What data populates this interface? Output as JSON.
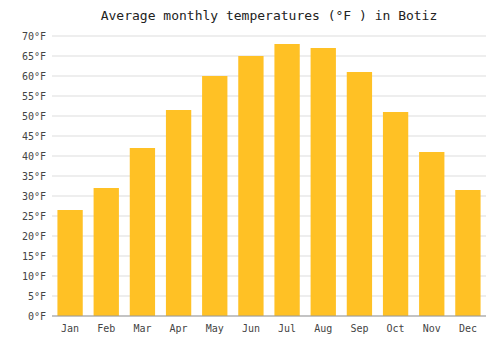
{
  "chart_data": {
    "type": "bar",
    "title": "Average monthly temperatures (°F ) in Botiz",
    "categories": [
      "Jan",
      "Feb",
      "Mar",
      "Apr",
      "May",
      "Jun",
      "Jul",
      "Aug",
      "Sep",
      "Oct",
      "Nov",
      "Dec"
    ],
    "values": [
      26.5,
      32,
      42,
      51.5,
      60,
      65,
      68,
      67,
      61,
      51,
      41,
      31.5
    ],
    "color": "#FFC125",
    "ylim": [
      0,
      70
    ],
    "yticks": [
      {
        "value": 0,
        "label": "0°F"
      },
      {
        "value": 5,
        "label": "5°F"
      },
      {
        "value": 10,
        "label": "10°F"
      },
      {
        "value": 15,
        "label": "15°F"
      },
      {
        "value": 20,
        "label": "20°F"
      },
      {
        "value": 25,
        "label": "25°F"
      },
      {
        "value": 30,
        "label": "30°F"
      },
      {
        "value": 35,
        "label": "35°F"
      },
      {
        "value": 40,
        "label": "40°F"
      },
      {
        "value": 45,
        "label": "45°F"
      },
      {
        "value": 50,
        "label": "50°F"
      },
      {
        "value": 55,
        "label": "55°F"
      },
      {
        "value": 60,
        "label": "60°F"
      },
      {
        "value": 65,
        "label": "65°F"
      },
      {
        "value": 70,
        "label": "70°F"
      }
    ],
    "grid": true
  }
}
